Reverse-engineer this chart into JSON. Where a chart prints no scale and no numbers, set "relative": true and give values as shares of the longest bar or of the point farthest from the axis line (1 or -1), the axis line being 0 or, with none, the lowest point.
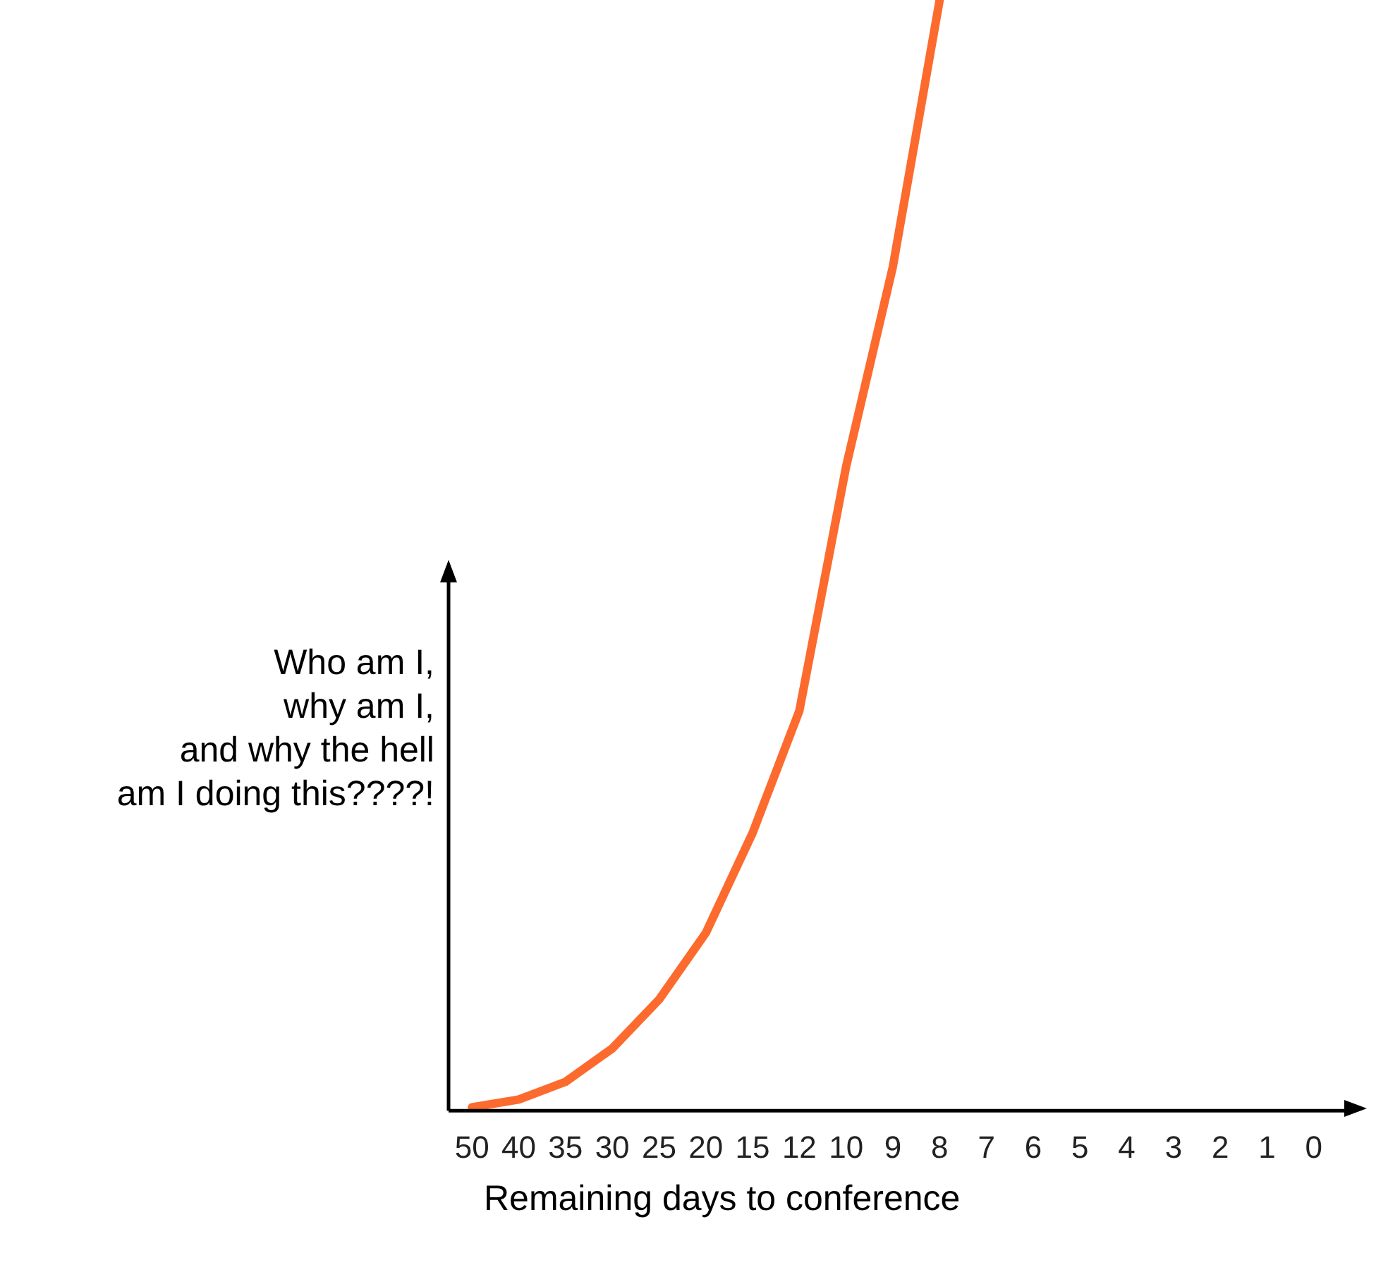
{
  "chart_data": {
    "type": "line",
    "relative": true,
    "xlabel": "Remaining days to conference",
    "ylabel": "Who am I,\nwhy am I,\nand why the hell\nam I doing this????!",
    "categories": [
      "50",
      "40",
      "35",
      "30",
      "25",
      "20",
      "15",
      "12",
      "10",
      "9",
      "8",
      "7",
      "6",
      "5",
      "4",
      "3",
      "2",
      "1",
      "0"
    ],
    "series": [
      {
        "color": "#fd6a2e",
        "values": [
          0.003,
          0.01,
          0.026,
          0.056,
          0.1,
          0.16,
          0.25,
          0.36,
          0.58,
          0.76,
          1,
          null,
          null,
          null,
          null,
          null,
          null,
          null,
          null
        ]
      }
    ],
    "grid": false,
    "legend": false,
    "marker": "none",
    "line_style": "solid"
  }
}
